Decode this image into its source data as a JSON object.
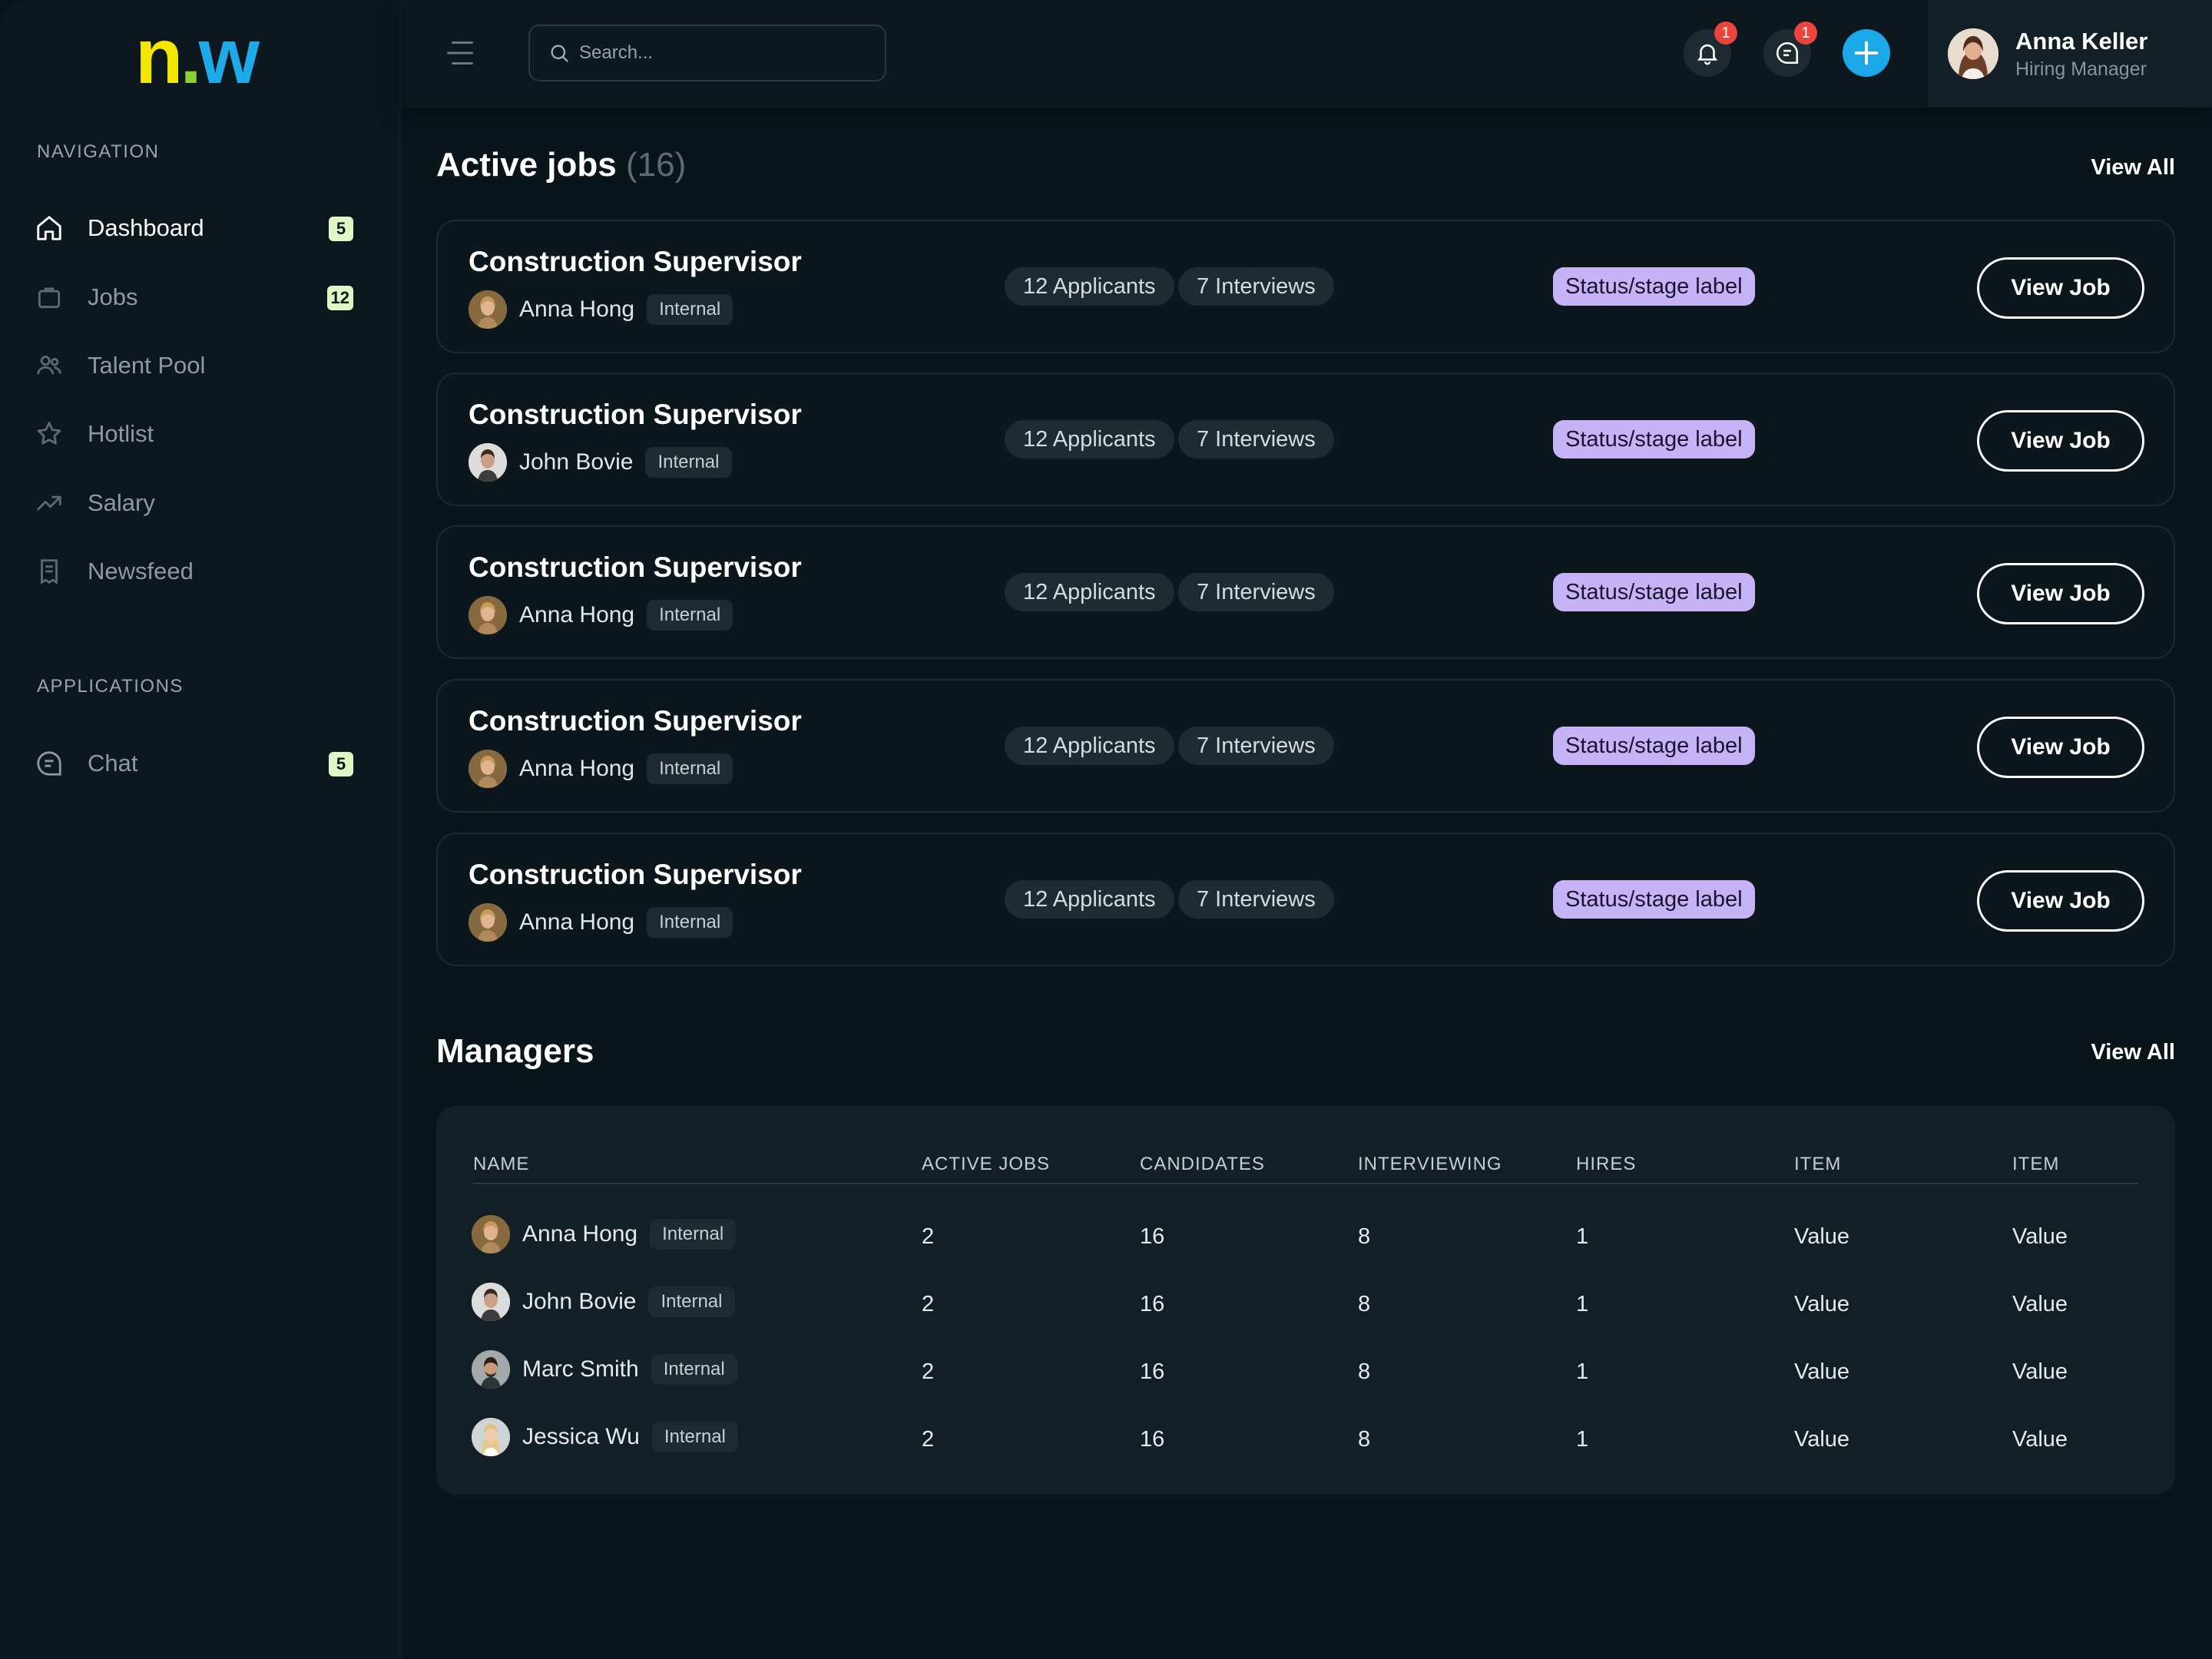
{
  "logo": {
    "n": "n",
    "dot": ".",
    "w": "w"
  },
  "sidebar": {
    "navigation_label": "NAVIGATION",
    "applications_label": "APPLICATIONS",
    "nav_items": [
      {
        "label": "Dashboard",
        "count": "5",
        "icon": "home-icon"
      },
      {
        "label": "Jobs",
        "count": "12",
        "icon": "briefcase-icon"
      },
      {
        "label": "Talent Pool",
        "icon": "users-icon"
      },
      {
        "label": "Hotlist",
        "icon": "star-icon"
      },
      {
        "label": "Salary",
        "icon": "trending-up-icon"
      },
      {
        "label": "Newsfeed",
        "icon": "document-icon"
      }
    ],
    "app_items": [
      {
        "label": "Chat",
        "count": "5",
        "icon": "chat-icon"
      }
    ]
  },
  "topbar": {
    "search_placeholder": "Search...",
    "notifications_badge": "1",
    "messages_badge": "1",
    "user": {
      "name": "Anna Keller",
      "role": "Hiring Manager"
    }
  },
  "active_jobs": {
    "title": "Active jobs",
    "count": "(16)",
    "view_all": "View All",
    "jobs": [
      {
        "title": "Construction Supervisor",
        "owner": "Anna Hong",
        "tag": "Internal",
        "applicants": "12 Applicants",
        "interviews": "7 Interviews",
        "status": "Status/stage label",
        "action": "View Job"
      },
      {
        "title": "Construction Supervisor",
        "owner": "John Bovie",
        "tag": "Internal",
        "applicants": "12 Applicants",
        "interviews": "7 Interviews",
        "status": "Status/stage label",
        "action": "View Job"
      },
      {
        "title": "Construction Supervisor",
        "owner": "Anna Hong",
        "tag": "Internal",
        "applicants": "12 Applicants",
        "interviews": "7 Interviews",
        "status": "Status/stage label",
        "action": "View Job"
      },
      {
        "title": "Construction Supervisor",
        "owner": "Anna Hong",
        "tag": "Internal",
        "applicants": "12 Applicants",
        "interviews": "7 Interviews",
        "status": "Status/stage label",
        "action": "View Job"
      },
      {
        "title": "Construction Supervisor",
        "owner": "Anna Hong",
        "tag": "Internal",
        "applicants": "12 Applicants",
        "interviews": "7 Interviews",
        "status": "Status/stage label",
        "action": "View Job"
      }
    ]
  },
  "managers": {
    "title": "Managers",
    "view_all": "View All",
    "columns": [
      "NAME",
      "ACTIVE JOBS",
      "CANDIDATES",
      "INTERVIEWING",
      "HIRES",
      "ITEM",
      "ITEM"
    ],
    "rows": [
      {
        "name": "Anna Hong",
        "tag": "Internal",
        "active_jobs": "2",
        "candidates": "16",
        "interviewing": "8",
        "hires": "1",
        "item1": "Value",
        "item2": "Value"
      },
      {
        "name": "John Bovie",
        "tag": "Internal",
        "active_jobs": "2",
        "candidates": "16",
        "interviewing": "8",
        "hires": "1",
        "item1": "Value",
        "item2": "Value"
      },
      {
        "name": "Marc Smith",
        "tag": "Internal",
        "active_jobs": "2",
        "candidates": "16",
        "interviewing": "8",
        "hires": "1",
        "item1": "Value",
        "item2": "Value"
      },
      {
        "name": "Jessica Wu",
        "tag": "Internal",
        "active_jobs": "2",
        "candidates": "16",
        "interviewing": "8",
        "hires": "1",
        "item1": "Value",
        "item2": "Value"
      }
    ]
  },
  "colors": {
    "background": "#09141b",
    "sidebar": "#0c171e",
    "accent_blue": "#1aa8e8",
    "status_purple": "#c6b3f5",
    "badge_green": "#dff6c6",
    "notification_red": "#e8453c"
  }
}
